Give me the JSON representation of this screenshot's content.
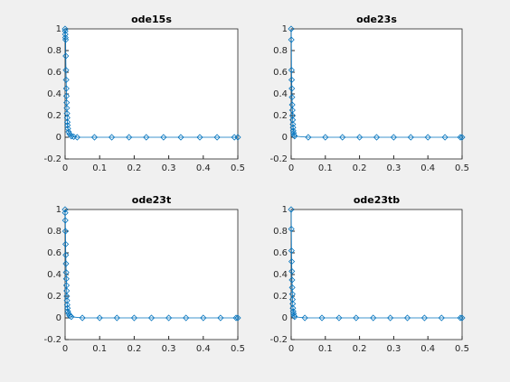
{
  "chart_data": [
    {
      "type": "line",
      "title": "ode15s",
      "color": "#0072bd",
      "marker": "diamond",
      "x": [
        0,
        0.0003,
        0.0006,
        0.001,
        0.0015,
        0.002,
        0.0025,
        0.003,
        0.0035,
        0.004,
        0.0045,
        0.005,
        0.0055,
        0.006,
        0.0065,
        0.007,
        0.008,
        0.01,
        0.013,
        0.018,
        0.025,
        0.035,
        0.085,
        0.135,
        0.185,
        0.235,
        0.285,
        0.335,
        0.39,
        0.44,
        0.49,
        0.5
      ],
      "y": [
        1,
        0.98,
        0.95,
        0.92,
        0.9,
        0.75,
        0.62,
        0.53,
        0.45,
        0.38,
        0.32,
        0.27,
        0.22,
        0.18,
        0.14,
        0.11,
        0.08,
        0.05,
        0.03,
        0.01,
        0.005,
        0,
        0,
        0,
        0,
        0,
        0,
        0,
        0,
        0,
        0,
        0
      ],
      "xlim": [
        0,
        0.5
      ],
      "ylim": [
        -0.2,
        1
      ],
      "xticks": [
        0,
        0.1,
        0.2,
        0.3,
        0.4,
        0.5
      ],
      "yticks": [
        -0.2,
        0,
        0.2,
        0.4,
        0.6,
        0.8,
        1
      ]
    },
    {
      "type": "line",
      "title": "ode23s",
      "color": "#0072bd",
      "marker": "diamond",
      "x": [
        0,
        0.0005,
        0.001,
        0.0015,
        0.002,
        0.0025,
        0.003,
        0.0035,
        0.004,
        0.0045,
        0.005,
        0.0055,
        0.006,
        0.007,
        0.008,
        0.01,
        0.05,
        0.1,
        0.15,
        0.2,
        0.25,
        0.3,
        0.35,
        0.4,
        0.45,
        0.495,
        0.5
      ],
      "y": [
        1,
        0.9,
        0.62,
        0.53,
        0.45,
        0.37,
        0.3,
        0.25,
        0.2,
        0.16,
        0.12,
        0.09,
        0.06,
        0.04,
        0.02,
        0.01,
        0,
        0,
        0,
        0,
        0,
        0,
        0,
        0,
        0,
        0,
        0
      ],
      "xlim": [
        0,
        0.5
      ],
      "ylim": [
        -0.2,
        1
      ],
      "xticks": [
        0,
        0.1,
        0.2,
        0.3,
        0.4,
        0.5
      ],
      "yticks": [
        -0.2,
        0,
        0.2,
        0.4,
        0.6,
        0.8,
        1
      ]
    },
    {
      "type": "line",
      "title": "ode23t",
      "color": "#0072bd",
      "marker": "diamond",
      "x": [
        0,
        0.0003,
        0.0006,
        0.001,
        0.0015,
        0.002,
        0.0025,
        0.003,
        0.0035,
        0.004,
        0.0045,
        0.005,
        0.0055,
        0.006,
        0.007,
        0.008,
        0.01,
        0.013,
        0.018,
        0.05,
        0.1,
        0.15,
        0.2,
        0.25,
        0.3,
        0.35,
        0.4,
        0.45,
        0.495,
        0.5
      ],
      "y": [
        1,
        0.97,
        0.9,
        0.8,
        0.68,
        0.58,
        0.5,
        0.42,
        0.36,
        0.3,
        0.25,
        0.2,
        0.16,
        0.12,
        0.09,
        0.06,
        0.04,
        0.02,
        0.01,
        0,
        0,
        0,
        0,
        0,
        0,
        0,
        0,
        0,
        0,
        0
      ],
      "xlim": [
        0,
        0.5
      ],
      "ylim": [
        -0.2,
        1
      ],
      "xticks": [
        0,
        0.1,
        0.2,
        0.3,
        0.4,
        0.5
      ],
      "yticks": [
        -0.2,
        0,
        0.2,
        0.4,
        0.6,
        0.8,
        1
      ]
    },
    {
      "type": "line",
      "title": "ode23tb",
      "color": "#0072bd",
      "marker": "diamond",
      "x": [
        0,
        0.0005,
        0.001,
        0.0015,
        0.002,
        0.0025,
        0.003,
        0.0035,
        0.004,
        0.0045,
        0.005,
        0.006,
        0.007,
        0.008,
        0.01,
        0.04,
        0.09,
        0.14,
        0.19,
        0.24,
        0.29,
        0.34,
        0.39,
        0.44,
        0.495,
        0.5
      ],
      "y": [
        1,
        0.82,
        0.62,
        0.52,
        0.43,
        0.35,
        0.28,
        0.22,
        0.17,
        0.13,
        0.09,
        0.06,
        0.04,
        0.02,
        0.01,
        0,
        0,
        0,
        0,
        0,
        0,
        0,
        0,
        0,
        0,
        0
      ],
      "xlim": [
        0,
        0.5
      ],
      "ylim": [
        -0.2,
        1
      ],
      "xticks": [
        0,
        0.1,
        0.2,
        0.3,
        0.4,
        0.5
      ],
      "yticks": [
        -0.2,
        0,
        0.2,
        0.4,
        0.6,
        0.8,
        1
      ]
    }
  ]
}
